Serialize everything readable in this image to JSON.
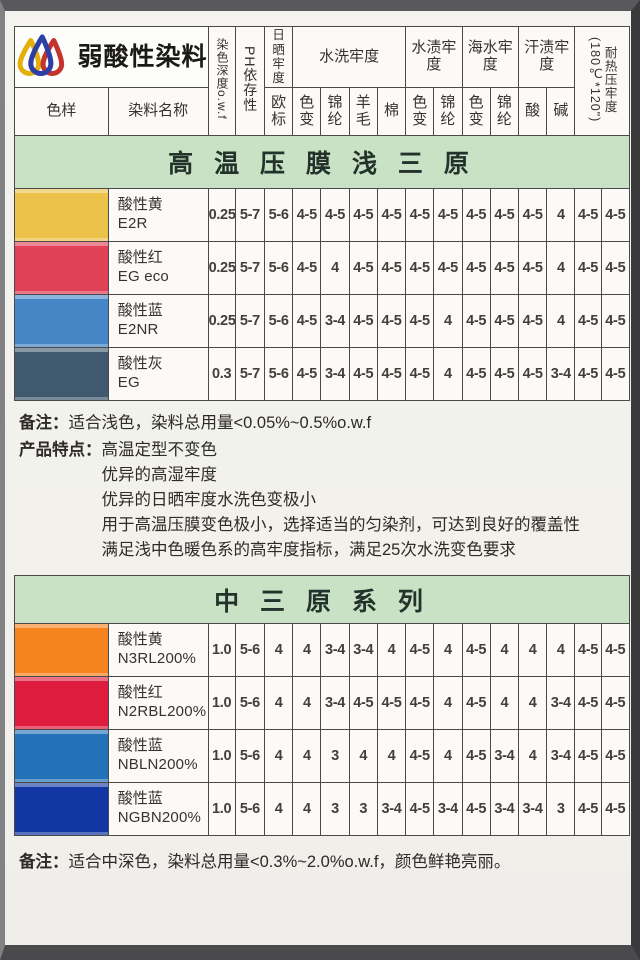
{
  "brand": {
    "title": "弱酸性染料",
    "logo_colors": {
      "yellow": "#e2af0b",
      "blue": "#2b3fa6",
      "red": "#c5332f"
    }
  },
  "header": {
    "sample": "色样",
    "name": "染料名称",
    "depth": "染色深度o.w.f",
    "ph": "PH依存性",
    "light": "日晒牢度",
    "light_sub": "欧标",
    "groups": [
      {
        "label": "水洗牢度",
        "subs": [
          "色变",
          "锦纶",
          "羊毛",
          "棉"
        ]
      },
      {
        "label": "水渍牢度",
        "subs": [
          "色变",
          "锦纶"
        ]
      },
      {
        "label": "海水牢度",
        "subs": [
          "色变",
          "锦纶"
        ]
      },
      {
        "label": "汗渍牢度",
        "subs": [
          "酸",
          "碱"
        ]
      }
    ],
    "heat": "耐热压牢度\n(180℃*120\")"
  },
  "tables": [
    {
      "banner": "高 温 压 膜 浅 三 原",
      "rows": [
        {
          "swatch": "#ecc24a",
          "name": "酸性黄",
          "code": "E2R",
          "values": [
            "0.25",
            "5-7",
            "5-6",
            "4-5",
            "4-5",
            "4-5",
            "4-5",
            "4-5",
            "4-5",
            "4-5",
            "4-5",
            "4-5",
            "4",
            "4-5",
            "4-5"
          ]
        },
        {
          "swatch": "#e04156",
          "name": "酸性红",
          "code": "EG eco",
          "values": [
            "0.25",
            "5-7",
            "5-6",
            "4-5",
            "4",
            "4-5",
            "4-5",
            "4-5",
            "4-5",
            "4-5",
            "4-5",
            "4-5",
            "4",
            "4-5",
            "4-5"
          ]
        },
        {
          "swatch": "#4486c6",
          "name": "酸性蓝",
          "code": "E2NR",
          "values": [
            "0.25",
            "5-7",
            "5-6",
            "4-5",
            "3-4",
            "4-5",
            "4-5",
            "4-5",
            "4",
            "4-5",
            "4-5",
            "4-5",
            "4",
            "4-5",
            "4-5"
          ]
        },
        {
          "swatch": "#40596f",
          "name": "酸性灰",
          "code": "EG",
          "values": [
            "0.3",
            "5-7",
            "5-6",
            "4-5",
            "3-4",
            "4-5",
            "4-5",
            "4-5",
            "4",
            "4-5",
            "4-5",
            "4-5",
            "3-4",
            "4-5",
            "4-5"
          ]
        }
      ],
      "note_label": "备注：",
      "note": "适合浅色，染料总用量<0.05%~0.5%o.w.f",
      "features_label": "产品特点：",
      "features": [
        "高温定型不变色",
        "优异的高湿牢度",
        "优异的日晒牢度水洗色变极小",
        "用于高温压膜变色极小，选择适当的匀染剂，可达到良好的覆盖性",
        "满足浅中色暖色系的高牢度指标，满足25次水洗变色要求"
      ]
    },
    {
      "banner": "中 三 原 系 列",
      "rows": [
        {
          "swatch": "#f5831e",
          "name": "酸性黄",
          "code": "N3RL200%",
          "values": [
            "1.0",
            "5-6",
            "4",
            "4",
            "3-4",
            "3-4",
            "4",
            "4-5",
            "4",
            "4-5",
            "4",
            "4",
            "4",
            "4-5",
            "4-5"
          ]
        },
        {
          "swatch": "#dd1c3e",
          "name": "酸性红",
          "code": "N2RBL200%",
          "values": [
            "1.0",
            "5-6",
            "4",
            "4",
            "3-4",
            "4-5",
            "4-5",
            "4-5",
            "4",
            "4-5",
            "4",
            "4",
            "3-4",
            "4-5",
            "4-5"
          ]
        },
        {
          "swatch": "#2371b7",
          "name": "酸性蓝",
          "code": "NBLN200%",
          "values": [
            "1.0",
            "5-6",
            "4",
            "4",
            "3",
            "4",
            "4",
            "4-5",
            "4",
            "4-5",
            "3-4",
            "4",
            "3-4",
            "4-5",
            "4-5"
          ]
        },
        {
          "swatch": "#1337a2",
          "name": "酸性蓝",
          "code": "NGBN200%",
          "values": [
            "1.0",
            "5-6",
            "4",
            "4",
            "3",
            "3",
            "3-4",
            "4-5",
            "3-4",
            "4-5",
            "3-4",
            "3-4",
            "3",
            "4-5",
            "4-5"
          ]
        }
      ],
      "note_label": "备注：",
      "note": "适合中深色，染料总用量<0.3%~2.0%o.w.f，颜色鲜艳亮丽。"
    }
  ],
  "colors": {
    "banner_green": "#c9e2c6",
    "border": "#4c4a48",
    "page_bg": "#f2f1ec"
  }
}
